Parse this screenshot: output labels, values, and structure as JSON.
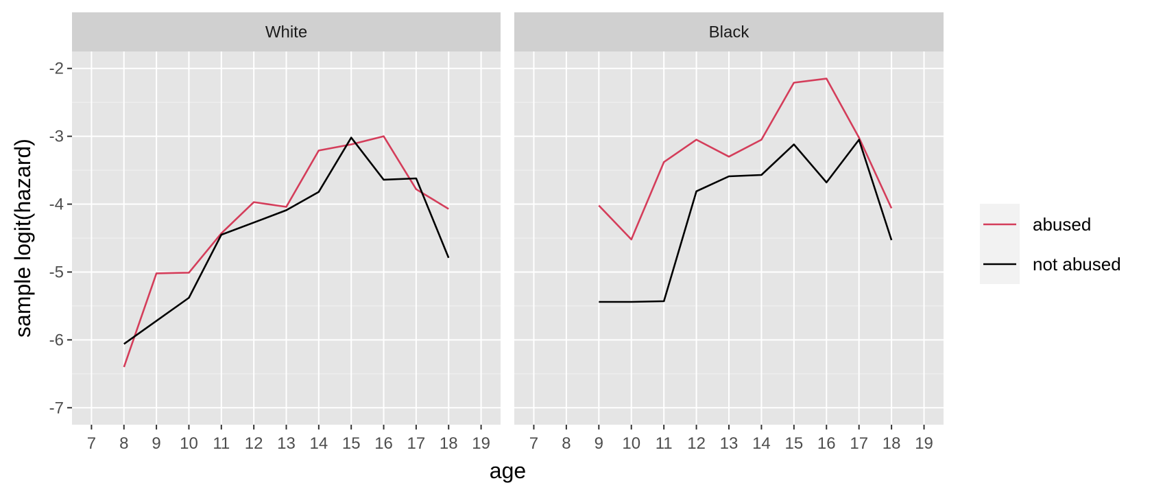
{
  "chart_data": {
    "type": "line",
    "xlabel": "age",
    "ylabel": "sample logit(hazard)",
    "xlim": [
      6.4,
      19.6
    ],
    "ylim": [
      -7.25,
      -1.75
    ],
    "x_ticks": [
      7,
      8,
      9,
      10,
      11,
      12,
      13,
      14,
      15,
      16,
      17,
      18,
      19
    ],
    "y_ticks": [
      -7,
      -6,
      -5,
      -4,
      -3,
      -2
    ],
    "y_tick_labels": [
      "-7",
      "-6",
      "-5",
      "-4",
      "-3",
      "-2"
    ],
    "grid": true,
    "legend_position": "right",
    "colors": {
      "abused": "#d43d5a",
      "not abused": "#000000",
      "panel_bg": "#e5e5e5",
      "strip_bg": "#d0d0d0"
    },
    "legend": [
      {
        "name": "abused",
        "color": "#d43d5a"
      },
      {
        "name": "not abused",
        "color": "#000000"
      }
    ],
    "facets": [
      {
        "label": "White",
        "series": [
          {
            "name": "abused",
            "x": [
              8,
              9,
              10,
              11,
              12,
              13,
              14,
              15,
              16,
              17,
              18
            ],
            "values": [
              -6.4,
              -5.02,
              -5.01,
              -4.43,
              -3.97,
              -4.04,
              -3.21,
              -3.12,
              -3.0,
              -3.78,
              -4.07
            ]
          },
          {
            "name": "not abused",
            "x": [
              8,
              9,
              10,
              11,
              12,
              13,
              14,
              15,
              16,
              17,
              18
            ],
            "values": [
              -6.06,
              -5.72,
              -5.38,
              -4.45,
              -4.27,
              -4.09,
              -3.82,
              -3.02,
              -3.64,
              -3.62,
              -4.79
            ]
          }
        ]
      },
      {
        "label": "Black",
        "series": [
          {
            "name": "abused",
            "x": [
              9,
              10,
              11,
              12,
              13,
              14,
              15,
              16,
              17,
              18
            ],
            "values": [
              -4.02,
              -4.52,
              -3.38,
              -3.05,
              -3.3,
              -3.05,
              -2.21,
              -2.15,
              -3.02,
              -4.06
            ]
          },
          {
            "name": "not abused",
            "x": [
              9,
              10,
              11,
              12,
              13,
              14,
              15,
              16,
              17,
              18
            ],
            "values": [
              -5.44,
              -5.44,
              -5.43,
              -3.81,
              -3.59,
              -3.57,
              -3.12,
              -3.68,
              -3.05,
              -4.53
            ]
          }
        ]
      }
    ]
  }
}
